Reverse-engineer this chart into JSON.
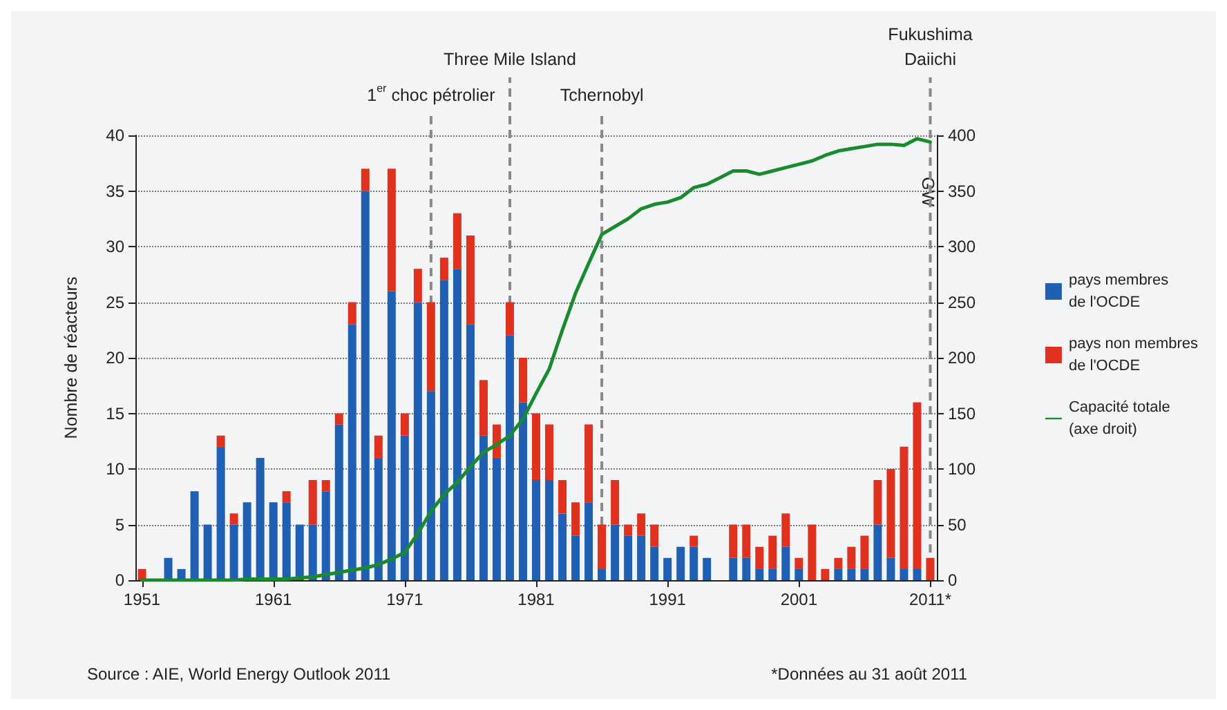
{
  "chart_data": {
    "type": "bar",
    "stacked": true,
    "x": [
      1951,
      1952,
      1953,
      1954,
      1955,
      1956,
      1957,
      1958,
      1959,
      1960,
      1961,
      1962,
      1963,
      1964,
      1965,
      1966,
      1967,
      1968,
      1969,
      1970,
      1971,
      1972,
      1973,
      1974,
      1975,
      1976,
      1977,
      1978,
      1979,
      1980,
      1981,
      1982,
      1983,
      1984,
      1985,
      1986,
      1987,
      1988,
      1989,
      1990,
      1991,
      1992,
      1993,
      1994,
      1995,
      1996,
      1997,
      1998,
      1999,
      2000,
      2001,
      2002,
      2003,
      2004,
      2005,
      2006,
      2007,
      2008,
      2009,
      2010,
      2011
    ],
    "series": [
      {
        "name": "pays membres\nde l'OCDE",
        "color": "#1f5fb4",
        "values": [
          0,
          0,
          2,
          1,
          8,
          5,
          12,
          5,
          7,
          11,
          7,
          7,
          5,
          5,
          8,
          14,
          23,
          35,
          11,
          26,
          13,
          25,
          17,
          27,
          28,
          23,
          13,
          11,
          22,
          16,
          9,
          9,
          6,
          4,
          7,
          1,
          5,
          4,
          4,
          3,
          2,
          3,
          3,
          2,
          0,
          2,
          2,
          1,
          1,
          3,
          1,
          0,
          0,
          1,
          1,
          1,
          5,
          2,
          1,
          1,
          0
        ]
      },
      {
        "name": "pays non membres\nde l'OCDE",
        "color": "#e0301e",
        "values": [
          1,
          0,
          0,
          0,
          0,
          0,
          1,
          1,
          0,
          0,
          0,
          1,
          0,
          4,
          1,
          1,
          2,
          2,
          2,
          11,
          2,
          3,
          8,
          2,
          5,
          8,
          5,
          3,
          3,
          4,
          6,
          5,
          3,
          3,
          7,
          4,
          4,
          1,
          2,
          2,
          0,
          0,
          1,
          0,
          0,
          3,
          3,
          2,
          3,
          3,
          1,
          5,
          1,
          1,
          2,
          3,
          4,
          8,
          11,
          15,
          2
        ]
      },
      {
        "name": "Capacité totale\n(axe droit)",
        "type": "line",
        "axis": "y2",
        "color": "#1a8a2e",
        "marker": "none",
        "line_style": "solid",
        "values": [
          0,
          0,
          0,
          0,
          0,
          0,
          0,
          0,
          1,
          1,
          1,
          1,
          2,
          3,
          5,
          7,
          9,
          11,
          14,
          19,
          25,
          42,
          62,
          77,
          88,
          102,
          115,
          122,
          130,
          145,
          168,
          190,
          225,
          258,
          285,
          311,
          318,
          325,
          334,
          338,
          340,
          344,
          353,
          356,
          362,
          368,
          368,
          365,
          368,
          371,
          374,
          377,
          382,
          386,
          388,
          390,
          392,
          392,
          391,
          397,
          394
        ]
      }
    ],
    "ylabel": "Nombre de réacteurs",
    "y2label": "GW",
    "xlim": [
      1950.5,
      2011.5
    ],
    "xticks": [
      1951,
      1961,
      1971,
      1981,
      1991,
      2001,
      {
        "value": 2011,
        "label": "2011*"
      }
    ],
    "ylim": [
      0,
      40
    ],
    "yticks": [
      0,
      5,
      10,
      15,
      20,
      25,
      30,
      35,
      40
    ],
    "y2lim": [
      0,
      400
    ],
    "y2ticks": [
      0,
      50,
      100,
      150,
      200,
      250,
      300,
      350,
      400
    ],
    "ref_lines": [
      {
        "axis": "x",
        "value": 1973,
        "label": "1$^{er}$ choc pétrolier",
        "line_style": "dashed"
      },
      {
        "axis": "x",
        "value": 1979,
        "label": "Three Mile Island",
        "line_style": "dashed"
      },
      {
        "axis": "x",
        "value": 1986,
        "label": "Tchernobyl",
        "line_style": "dashed"
      },
      {
        "axis": "x",
        "value": 2011,
        "label": "Fukushima\nDaiichi",
        "line_style": "dashed"
      }
    ],
    "grid": "y",
    "legend": "right",
    "annotations": [
      "Source : AIE, World Energy Outlook 2011",
      "*Données au 31 août 2011"
    ]
  }
}
